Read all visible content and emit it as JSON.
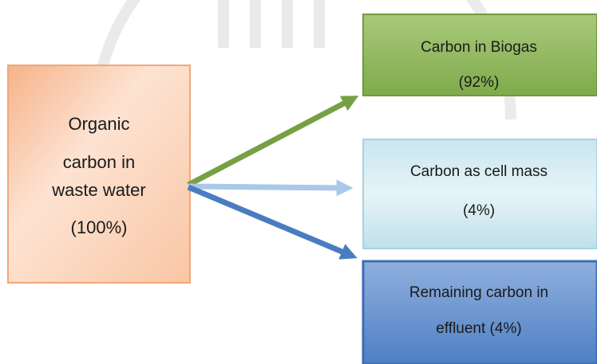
{
  "nodes": [
    {
      "lines": [
        "Organic",
        "carbon in",
        "waste water",
        "(100%)"
      ]
    },
    {
      "lines": [
        "Carbon in Biogas",
        "(92%)"
      ]
    },
    {
      "lines": [
        "Carbon as cell mass",
        "(4%)"
      ]
    },
    {
      "lines": [
        "Remaining carbon in",
        "effluent (4%)"
      ]
    }
  ]
}
